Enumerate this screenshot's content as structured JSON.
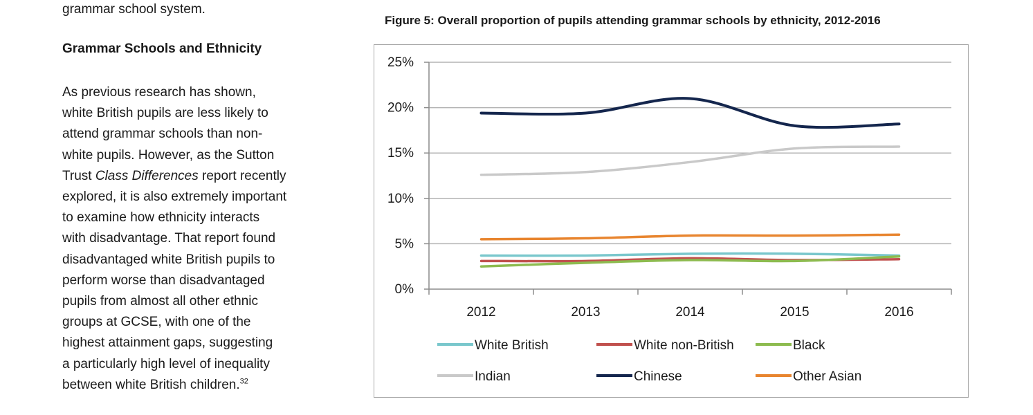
{
  "text": {
    "intro_tail": "grammar school system.",
    "section_heading": "Grammar Schools and Ethnicity",
    "body_lines": [
      "As previous research has shown,",
      "white British pupils are less likely to",
      "attend grammar schools than non-",
      "white pupils. However, as the Sutton",
      "Trust ",
      "explored, it is also extremely important",
      "to examine how ethnicity interacts",
      "with disadvantage. That report found",
      "disadvantaged white British pupils to",
      "perform worse than disadvantaged",
      "pupils from almost all other ethnic",
      "groups at GCSE, with one of the",
      "highest attainment gaps, suggesting",
      "a particularly high level of inequality",
      "between white British children."
    ],
    "report_name": "Class Differences",
    "line5_tail": " report recently",
    "footnote_ref": "32"
  },
  "chart_data": {
    "type": "line",
    "title": "Figure 5: Overall proportion of pupils attending grammar schools by ethnicity, 2012-2016",
    "categories": [
      "2012",
      "2013",
      "2014",
      "2015",
      "2016"
    ],
    "y_ticks": [
      "0%",
      "5%",
      "10%",
      "15%",
      "20%",
      "25%"
    ],
    "ylim": [
      0,
      25
    ],
    "grid": true,
    "legend_position": "bottom",
    "series": [
      {
        "name": "White British",
        "color": "#79c7cc",
        "values": [
          3.7,
          3.7,
          3.9,
          3.9,
          3.7
        ]
      },
      {
        "name": "White non-British",
        "color": "#c0504d",
        "values": [
          3.1,
          3.1,
          3.4,
          3.2,
          3.3
        ]
      },
      {
        "name": "Black",
        "color": "#8dbb4f",
        "values": [
          2.5,
          2.9,
          3.2,
          3.1,
          3.6
        ]
      },
      {
        "name": "Indian",
        "color": "#c9c9c9",
        "values": [
          12.6,
          12.9,
          14.0,
          15.5,
          15.7
        ]
      },
      {
        "name": "Chinese",
        "color": "#14264d",
        "values": [
          19.4,
          19.4,
          21.0,
          18.0,
          18.2
        ]
      },
      {
        "name": "Other Asian",
        "color": "#e8852f",
        "values": [
          5.5,
          5.6,
          5.9,
          5.9,
          6.0
        ]
      }
    ]
  }
}
